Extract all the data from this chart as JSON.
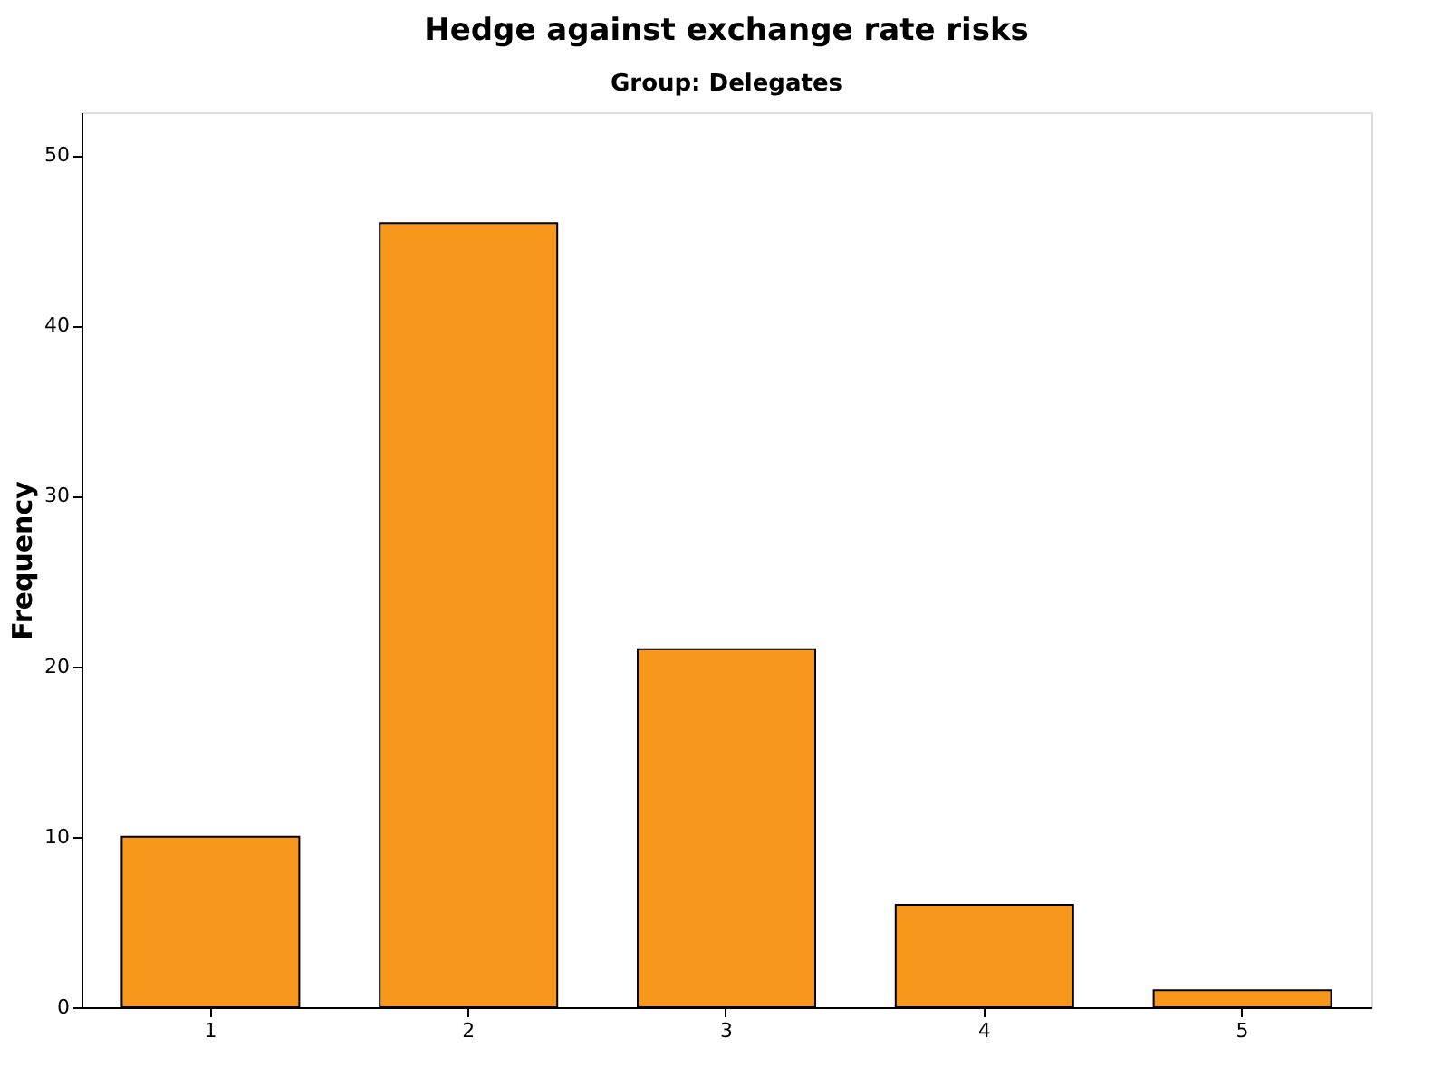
{
  "chart_data": {
    "type": "bar",
    "title": "Hedge against exchange rate risks",
    "subtitle": "Group: Delegates",
    "ylabel": "Frequency",
    "categories": [
      "1",
      "2",
      "3",
      "4",
      "5"
    ],
    "values": [
      10,
      46,
      21,
      6,
      1
    ],
    "color": "#f7981d",
    "ylim": [
      0,
      52.5
    ],
    "yticks": [
      0,
      10,
      20,
      30,
      40,
      50
    ],
    "grid": false
  }
}
